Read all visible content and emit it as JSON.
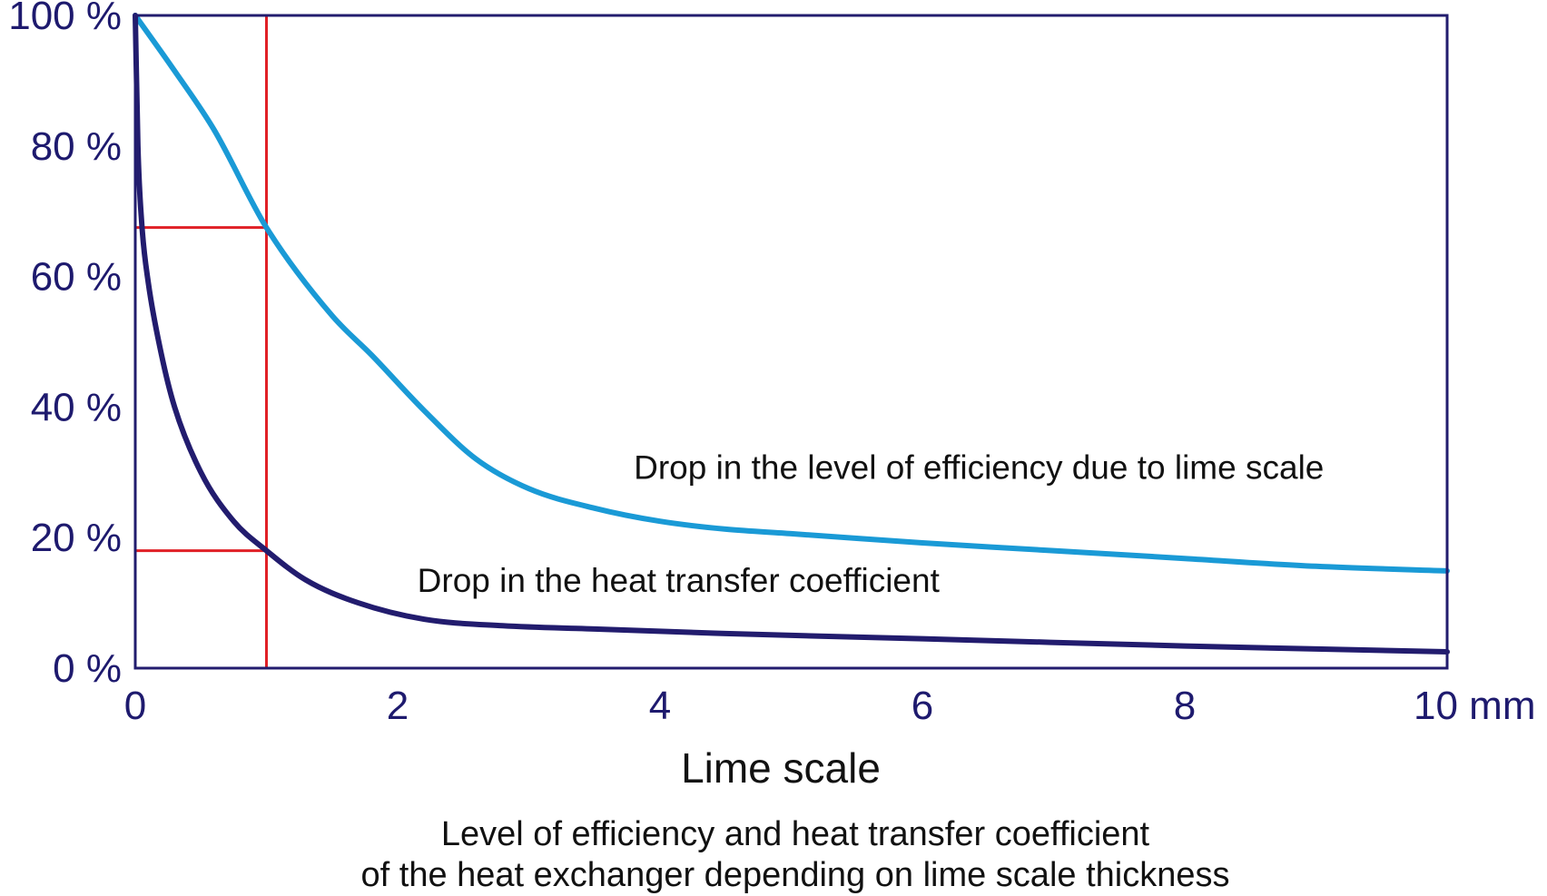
{
  "chart_data": {
    "type": "line",
    "title": "Level of efficiency and heat transfer coefficient",
    "subtitle": "of the heat exchanger depending on lime scale thickness",
    "xlabel": "Lime scale",
    "ylabel": "",
    "xlim": [
      0,
      10
    ],
    "ylim": [
      0,
      100
    ],
    "x_ticks": [
      0,
      2,
      4,
      6,
      8,
      10
    ],
    "x_tick_labels": [
      "0",
      "2",
      "4",
      "6",
      "8",
      "10 mm"
    ],
    "y_ticks": [
      0,
      20,
      40,
      60,
      80,
      100
    ],
    "y_tick_labels": [
      "0 %",
      "20 %",
      "40 %",
      "60 %",
      "80 %",
      "100 %"
    ],
    "grid": false,
    "series": [
      {
        "name": "Drop in the level of efficiency due to lime scale",
        "color": "#1a9ad6",
        "x": [
          0,
          0.3,
          0.6,
          1.0,
          1.5,
          1.8,
          2.2,
          2.6,
          3.0,
          3.5,
          4.0,
          4.5,
          5.0,
          6.0,
          7.0,
          8.0,
          9.0,
          10.0
        ],
        "y": [
          100,
          91.5,
          82.5,
          67.5,
          54,
          48,
          39.5,
          32,
          27.5,
          24.5,
          22.5,
          21.3,
          20.6,
          19.2,
          18.0,
          16.8,
          15.6,
          14.9
        ]
      },
      {
        "name": "Drop in the heat transfer coefficient",
        "color": "#221c6e",
        "x": [
          0,
          0.02,
          0.05,
          0.1,
          0.2,
          0.3,
          0.5,
          0.75,
          1.0,
          1.3,
          1.7,
          2.2,
          2.8,
          3.5,
          4.5,
          6.0,
          8.0,
          10.0
        ],
        "y": [
          100,
          80,
          68,
          59,
          48,
          40,
          30,
          22.5,
          18,
          13.5,
          10,
          7.5,
          6.5,
          6.0,
          5.3,
          4.5,
          3.4,
          2.5
        ]
      }
    ],
    "reference_lines": {
      "color": "#e02026",
      "vertical_x": 1.0,
      "horizontal": [
        {
          "y": 67.5,
          "x_to": 1.0
        },
        {
          "y": 18,
          "x_to": 1.0
        }
      ]
    },
    "annotations": [
      {
        "text": "Drop in the level of efficiency due to lime scale",
        "x": 3.8,
        "y": 29
      },
      {
        "text": "Drop in the heat transfer coefficient",
        "x": 2.15,
        "y": 11.7
      }
    ]
  }
}
